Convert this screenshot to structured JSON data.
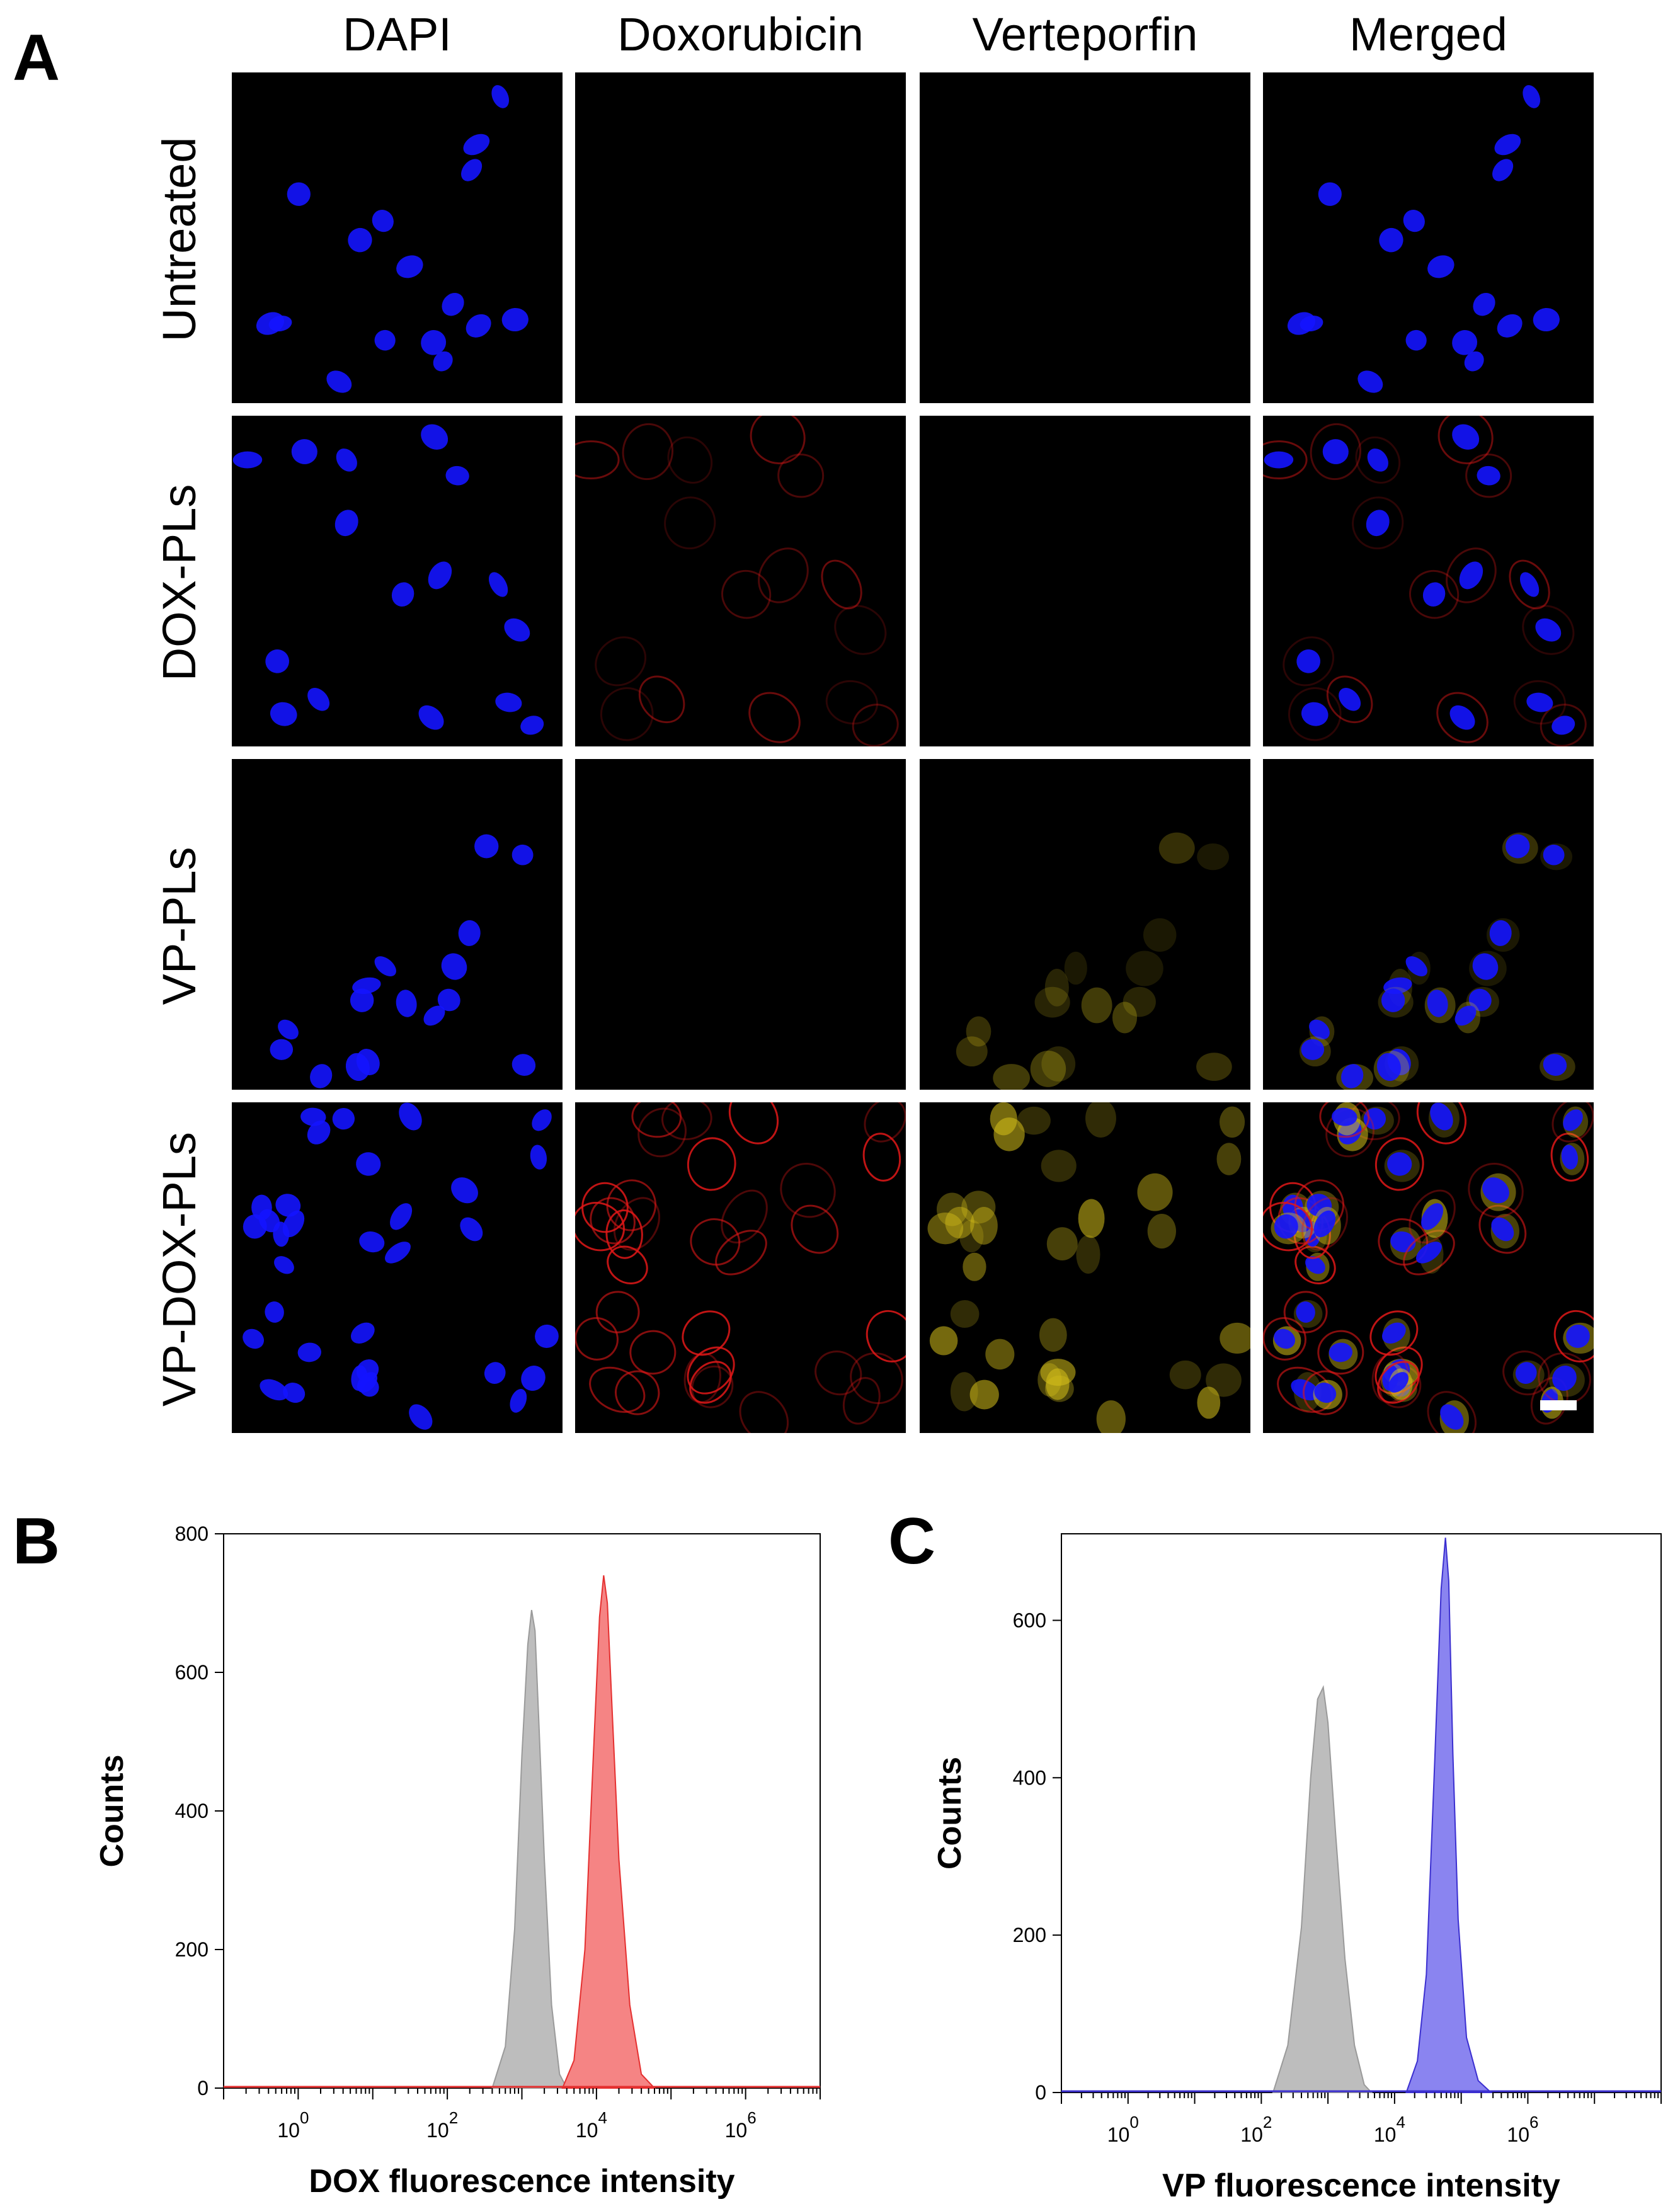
{
  "panel_labels": {
    "a": "A",
    "b": "B",
    "c": "C"
  },
  "columns": [
    "DAPI",
    "Doxorubicin",
    "Verteporfin",
    "Merged"
  ],
  "rows": [
    "Untreated",
    "DOX-PLs",
    "VP-PLs",
    "VP-DOX-PLs"
  ],
  "colors": {
    "dapi": "#1414ff",
    "dox": "#e01818",
    "vp": "#d8c21a",
    "control_hist": "#bdbdbd",
    "dox_hist": "#f58484",
    "vp_hist": "#8a84f0",
    "dox_line": "#e53030",
    "vp_line": "#3b2fd0"
  },
  "chart_data": [
    {
      "type": "area",
      "panel": "B",
      "title": "",
      "xlabel": "DOX fluorescence intensity",
      "ylabel": "Counts",
      "x_scale": "log10",
      "xlim": [
        0.1,
        10000000
      ],
      "ylim": [
        0,
        800
      ],
      "x_ticks": [
        {
          "base": "10",
          "exp": "0"
        },
        {
          "base": "10",
          "exp": "2"
        },
        {
          "base": "10",
          "exp": "4"
        },
        {
          "base": "10",
          "exp": "6"
        }
      ],
      "y_ticks": [
        "0",
        "200",
        "400",
        "600",
        "800"
      ],
      "y_tick_values": [
        0,
        200,
        400,
        600,
        800
      ],
      "grid": false,
      "legend": false,
      "series": [
        {
          "color_key": "control_hist",
          "x": [
            400,
            600,
            800,
            1000,
            1200,
            1350,
            1500,
            1700,
            2000,
            2500,
            3200,
            4000
          ],
          "y": [
            0,
            60,
            230,
            480,
            640,
            690,
            660,
            520,
            330,
            120,
            20,
            0
          ]
        },
        {
          "color_key": "dox_hist",
          "x": [
            3500,
            5000,
            7000,
            9000,
            11000,
            12500,
            14000,
            16000,
            20000,
            28000,
            40000,
            60000
          ],
          "y": [
            0,
            40,
            200,
            470,
            680,
            740,
            700,
            560,
            330,
            120,
            20,
            0
          ]
        }
      ]
    },
    {
      "type": "area",
      "panel": "C",
      "title": "",
      "xlabel": "VP fluorescence intensity",
      "ylabel": "Counts",
      "x_scale": "log10",
      "xlim": [
        0.1,
        100000000
      ],
      "ylim": [
        0,
        710
      ],
      "x_ticks": [
        {
          "base": "10",
          "exp": "0"
        },
        {
          "base": "10",
          "exp": "2"
        },
        {
          "base": "10",
          "exp": "4"
        },
        {
          "base": "10",
          "exp": "6"
        }
      ],
      "y_ticks": [
        "0",
        "200",
        "400",
        "600"
      ],
      "y_tick_values": [
        0,
        200,
        400,
        600
      ],
      "grid": false,
      "legend": false,
      "series": [
        {
          "color_key": "control_hist",
          "x": [
            150,
            250,
            400,
            550,
            700,
            850,
            1000,
            1300,
            1800,
            2500,
            3500,
            4500
          ],
          "y": [
            0,
            60,
            210,
            400,
            500,
            515,
            470,
            330,
            170,
            60,
            10,
            0
          ]
        },
        {
          "color_key": "vp_hist",
          "x": [
            15000,
            22000,
            30000,
            40000,
            50000,
            58000,
            65000,
            75000,
            90000,
            120000,
            180000,
            280000
          ],
          "y": [
            0,
            40,
            150,
            420,
            640,
            705,
            650,
            430,
            220,
            70,
            15,
            0
          ]
        }
      ]
    }
  ]
}
